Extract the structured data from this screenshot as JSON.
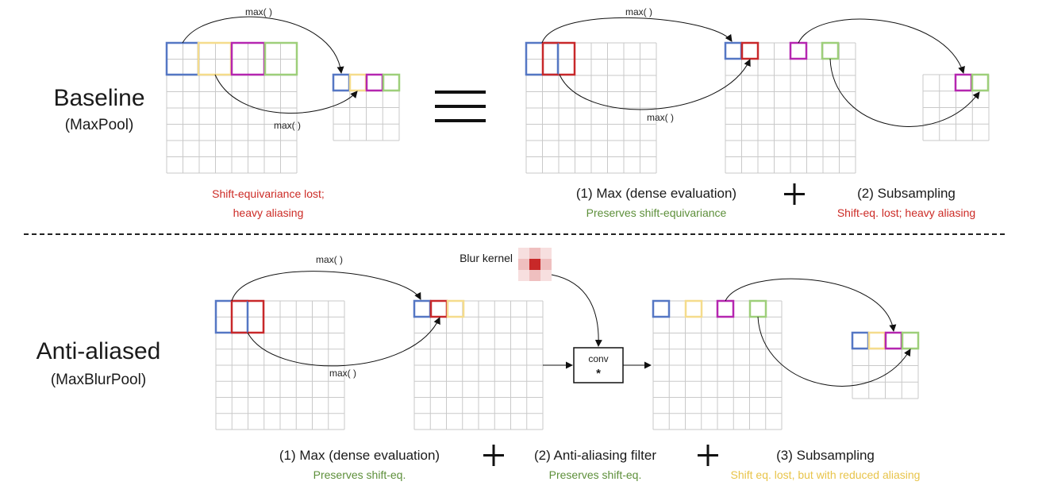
{
  "colors": {
    "blue": "#5577c4",
    "yellow": "#f5dc8c",
    "magenta": "#b526b0",
    "green": "#9ecf7a",
    "red": "#c8282a",
    "red_text": "#cc2b26",
    "green_text": "#5d8f3a",
    "yellow_text": "#e8c44a",
    "grid": "#c9c9c9"
  },
  "top": {
    "row_label": "Baseline",
    "row_sublabel": "(MaxPool)",
    "op_max_label_1": "max( )",
    "op_max_label_2": "max( )",
    "op_max_label_3": "max( )",
    "op_max_label_4": "max( )",
    "note_lost_line1": "Shift-equivariance lost;",
    "note_lost_line2": "heavy aliasing",
    "step1_label": "(1) Max (dense evaluation)",
    "step1_note": "Preserves shift-equivariance",
    "step2_label": "(2) Subsampling",
    "step2_note": "Shift-eq. lost; heavy aliasing"
  },
  "bottom": {
    "row_label": "Anti-aliased",
    "row_sublabel": "(MaxBlurPool)",
    "op_max_label_1": "max( )",
    "op_max_label_2": "max( )",
    "blur_kernel_label": "Blur kernel",
    "blur_kernel_values": [
      [
        0.15,
        0.3,
        0.15
      ],
      [
        0.3,
        1.0,
        0.3
      ],
      [
        0.15,
        0.3,
        0.15
      ]
    ],
    "conv_label": "conv",
    "conv_symbol": "*",
    "step1_label": "(1) Max (dense evaluation)",
    "step1_note": "Preserves shift-eq.",
    "step2_label": "(2) Anti-aliasing filter",
    "step2_note": "Preserves shift-eq.",
    "step3_label": "(3) Subsampling",
    "step3_note": "Shift eq. lost, but with reduced aliasing"
  }
}
